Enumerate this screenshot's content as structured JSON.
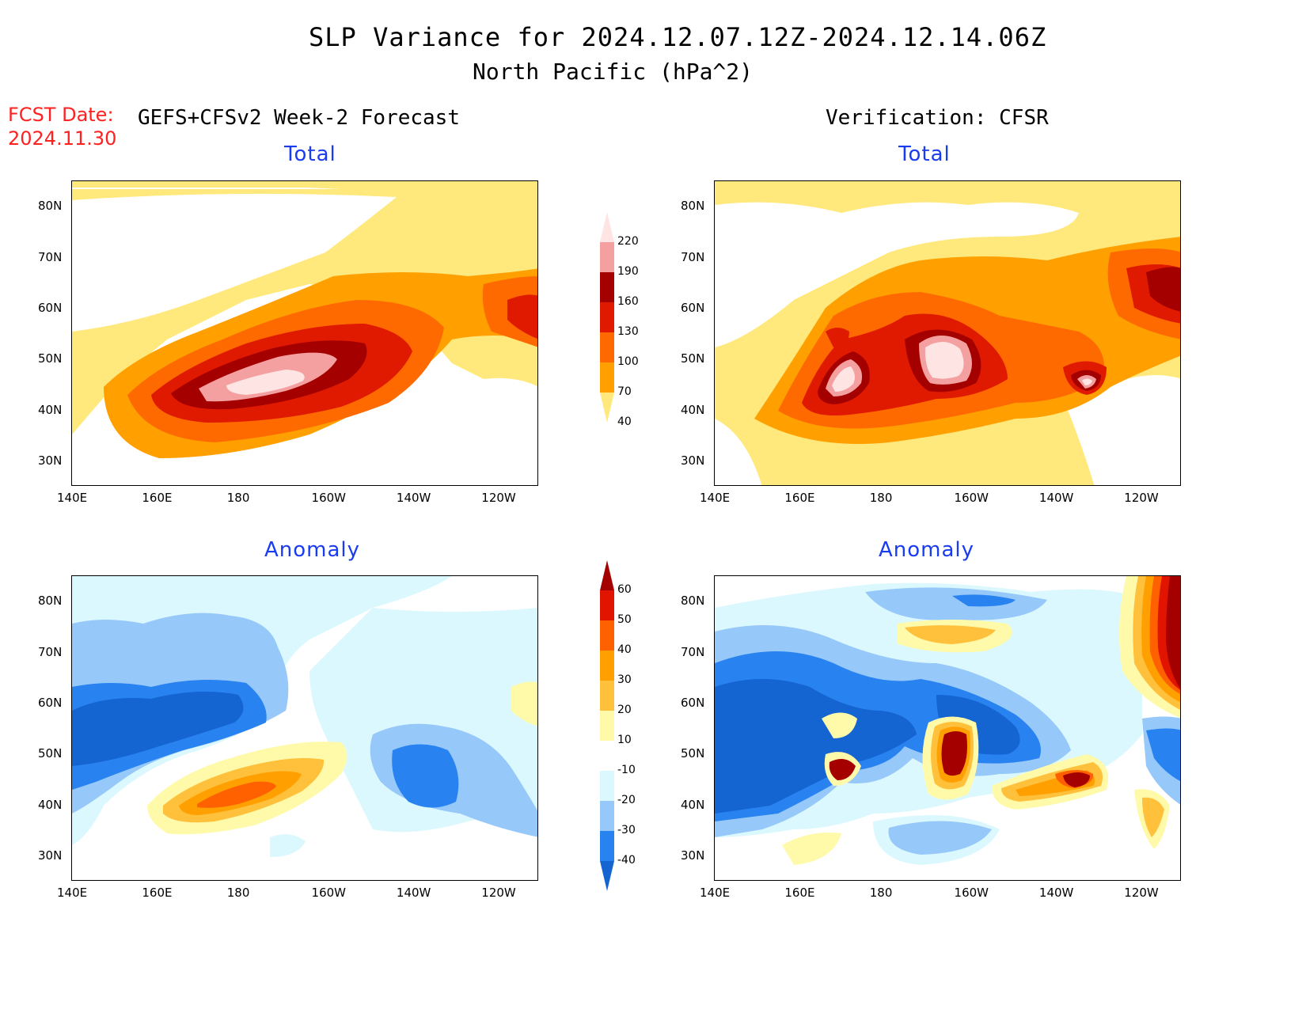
{
  "header": {
    "title": "SLP Variance for 2024.12.07.12Z-2024.12.14.06Z",
    "subtitle": "North Pacific (hPa^2)",
    "fcst_label": "FCST Date:",
    "fcst_date": "2024.11.30",
    "left_heading": "GEFS+CFSv2 Week-2 Forecast",
    "right_heading": "Verification: CFSR"
  },
  "panels": {
    "forecast_total_title": "Total",
    "verification_total_title": "Total",
    "forecast_anomaly_title": "Anomaly",
    "verification_anomaly_title": "Anomaly"
  },
  "axes": {
    "lon_ticks": [
      "140E",
      "160E",
      "180",
      "160W",
      "140W",
      "120W"
    ],
    "lat_ticks": [
      "80N",
      "70N",
      "60N",
      "50N",
      "40N",
      "30N"
    ],
    "lon_range": [
      "140E",
      "110W"
    ],
    "lat_range": [
      "25N",
      "85N"
    ]
  },
  "colorbars": {
    "total": {
      "levels": [
        "40",
        "70",
        "100",
        "130",
        "160",
        "190",
        "220"
      ],
      "colors": [
        "#ffe87c",
        "#ffa000",
        "#ff6a00",
        "#e01a00",
        "#a50000",
        "#f4a0a0",
        "#ffe4e4"
      ],
      "open_ends": true
    },
    "anomaly": {
      "levels": [
        "-40",
        "-30",
        "-20",
        "-10",
        "10",
        "20",
        "30",
        "40",
        "50",
        "60"
      ],
      "colors": [
        "#1464d2",
        "#2882f0",
        "#96c8fa",
        "#dcf8ff",
        "#ffffff",
        "#fffaaa",
        "#ffc03c",
        "#ffa000",
        "#ff6000",
        "#e11400",
        "#a50000"
      ],
      "open_ends": true
    }
  },
  "chart_data": [
    {
      "type": "heatmap",
      "title": "Total",
      "source": "GEFS+CFSv2 Week-2 Forecast",
      "features": [
        {
          "desc": "broad elongated maximum",
          "center": [
            "180",
            "45N"
          ],
          "max_level": "220"
        },
        {
          "desc": "secondary maximum",
          "center": [
            "115W",
            "58N"
          ],
          "level": "130-160"
        }
      ]
    },
    {
      "type": "heatmap",
      "title": "Total",
      "source": "Verification: CFSR",
      "features": [
        {
          "desc": "maximum",
          "center": [
            "165W",
            "50N"
          ],
          "max_level": "220"
        },
        {
          "desc": "maximum",
          "center": [
            "172E",
            "45N"
          ],
          "max_level": "220"
        },
        {
          "desc": "maximum",
          "center": [
            "132W",
            "44N"
          ],
          "max_level": "220"
        },
        {
          "desc": "maximum",
          "center": [
            "115W",
            "62N"
          ],
          "level": "160-190"
        }
      ]
    },
    {
      "type": "heatmap",
      "title": "Anomaly",
      "source": "GEFS+CFSv2 Week-2 Forecast",
      "features": [
        {
          "desc": "negative",
          "center": [
            "160E",
            "53N"
          ],
          "level": "-30 to -40"
        },
        {
          "desc": "positive",
          "center": [
            "180",
            "44N"
          ],
          "level": "40-50"
        },
        {
          "desc": "negative",
          "center": [
            "140W",
            "46N"
          ],
          "level": "-30 to -40"
        }
      ]
    },
    {
      "type": "heatmap",
      "title": "Anomaly",
      "source": "Verification: CFSR",
      "features": [
        {
          "desc": "negative",
          "center": [
            "160E",
            "48N"
          ],
          "level": "-30 to -40"
        },
        {
          "desc": "positive",
          "center": [
            "165W",
            "49N"
          ],
          "level": "60"
        },
        {
          "desc": "positive",
          "center": [
            "130W",
            "44N"
          ],
          "level": "60"
        },
        {
          "desc": "positive",
          "center": [
            "115W",
            "64N"
          ],
          "level": "60"
        }
      ]
    }
  ]
}
